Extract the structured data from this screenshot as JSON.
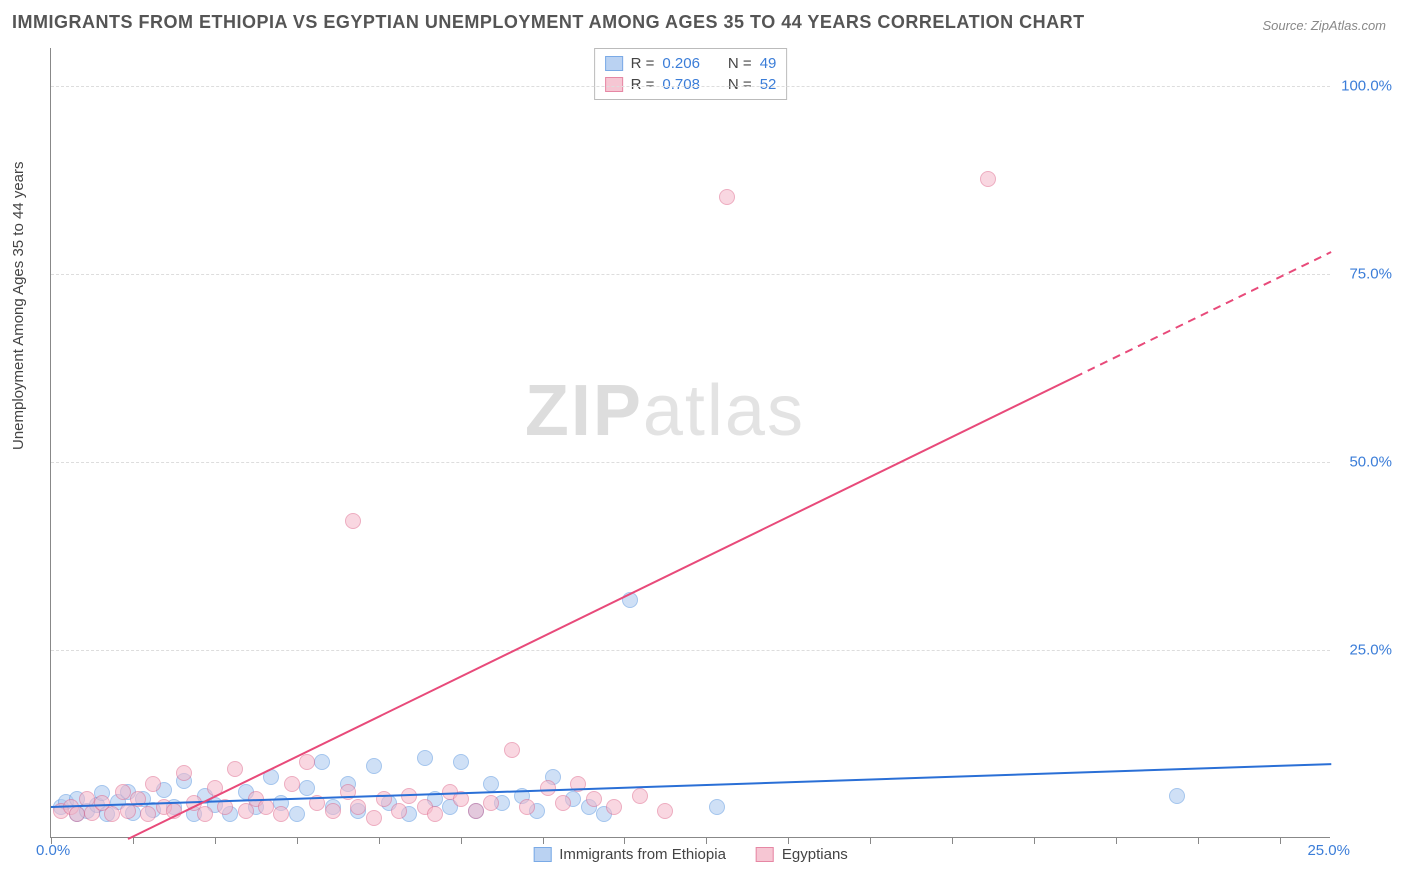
{
  "title": "IMMIGRANTS FROM ETHIOPIA VS EGYPTIAN UNEMPLOYMENT AMONG AGES 35 TO 44 YEARS CORRELATION CHART",
  "source": "Source: ZipAtlas.com",
  "y_axis_label": "Unemployment Among Ages 35 to 44 years",
  "watermark_bold": "ZIP",
  "watermark_thin": "atlas",
  "chart": {
    "type": "scatter",
    "xlim": [
      0,
      25
    ],
    "ylim": [
      0,
      105
    ],
    "x_ticks": [
      0,
      1.6,
      3.2,
      4.8,
      6.4,
      8.0,
      9.6,
      11.2,
      12.8,
      14.4,
      16.0,
      17.6,
      19.2,
      20.8,
      22.4,
      24.0
    ],
    "y_gridlines": [
      25,
      50,
      75,
      100
    ],
    "y_tick_labels": [
      "25.0%",
      "50.0%",
      "75.0%",
      "100.0%"
    ],
    "x_origin_label": "0.0%",
    "x_max_label": "25.0%",
    "background_color": "#ffffff",
    "grid_color": "#dddddd",
    "axis_color": "#888888",
    "series": [
      {
        "name": "Immigrants from Ethiopia",
        "legend_label": "Immigrants from Ethiopia",
        "fill": "#a9c8f0",
        "stroke": "#5a96e0",
        "fill_opacity": 0.55,
        "marker_radius": 8,
        "r_value": "0.206",
        "n_value": "49",
        "trend": {
          "y_at_x0": 4.3,
          "y_at_xmax": 10.0,
          "color": "#2a6fd6",
          "width": 2.4
        },
        "points": [
          [
            0.2,
            4.0
          ],
          [
            0.3,
            4.6
          ],
          [
            0.5,
            3.0
          ],
          [
            0.5,
            5.0
          ],
          [
            0.7,
            3.5
          ],
          [
            0.9,
            4.2
          ],
          [
            1.0,
            5.8
          ],
          [
            1.1,
            3.0
          ],
          [
            1.3,
            4.6
          ],
          [
            1.5,
            6.0
          ],
          [
            1.6,
            3.2
          ],
          [
            1.8,
            5.0
          ],
          [
            2.0,
            3.6
          ],
          [
            2.2,
            6.2
          ],
          [
            2.4,
            4.0
          ],
          [
            2.6,
            7.5
          ],
          [
            2.8,
            3.0
          ],
          [
            3.0,
            5.5
          ],
          [
            3.2,
            4.2
          ],
          [
            3.5,
            3.0
          ],
          [
            3.8,
            6.0
          ],
          [
            4.0,
            4.0
          ],
          [
            4.3,
            8.0
          ],
          [
            4.5,
            4.5
          ],
          [
            4.8,
            3.0
          ],
          [
            5.0,
            6.5
          ],
          [
            5.3,
            10.0
          ],
          [
            5.5,
            4.0
          ],
          [
            5.8,
            7.0
          ],
          [
            6.0,
            3.5
          ],
          [
            6.3,
            9.5
          ],
          [
            6.6,
            4.5
          ],
          [
            7.0,
            3.0
          ],
          [
            7.3,
            10.5
          ],
          [
            7.5,
            5.0
          ],
          [
            7.8,
            4.0
          ],
          [
            8.0,
            10.0
          ],
          [
            8.3,
            3.5
          ],
          [
            8.6,
            7.0
          ],
          [
            8.8,
            4.5
          ],
          [
            9.2,
            5.5
          ],
          [
            9.5,
            3.5
          ],
          [
            9.8,
            8.0
          ],
          [
            10.2,
            5.0
          ],
          [
            10.5,
            4.0
          ],
          [
            10.8,
            3.0
          ],
          [
            11.3,
            31.5
          ],
          [
            13.0,
            4.0
          ],
          [
            22.0,
            5.5
          ]
        ]
      },
      {
        "name": "Egyptians",
        "legend_label": "Egyptians",
        "fill": "#f5b8c9",
        "stroke": "#e06a8e",
        "fill_opacity": 0.55,
        "marker_radius": 8,
        "r_value": "0.708",
        "n_value": "52",
        "trend": {
          "y_at_x0": -5.0,
          "y_at_xmax": 78.0,
          "color": "#e84a7a",
          "width": 2.0,
          "dash_after_x": 20.0
        },
        "points": [
          [
            0.2,
            3.5
          ],
          [
            0.4,
            4.0
          ],
          [
            0.5,
            3.0
          ],
          [
            0.7,
            5.0
          ],
          [
            0.8,
            3.2
          ],
          [
            1.0,
            4.5
          ],
          [
            1.2,
            3.0
          ],
          [
            1.4,
            6.0
          ],
          [
            1.5,
            3.5
          ],
          [
            1.7,
            5.0
          ],
          [
            1.9,
            3.0
          ],
          [
            2.0,
            7.0
          ],
          [
            2.2,
            4.0
          ],
          [
            2.4,
            3.5
          ],
          [
            2.6,
            8.5
          ],
          [
            2.8,
            4.5
          ],
          [
            3.0,
            3.0
          ],
          [
            3.2,
            6.5
          ],
          [
            3.4,
            4.0
          ],
          [
            3.6,
            9.0
          ],
          [
            3.8,
            3.5
          ],
          [
            4.0,
            5.0
          ],
          [
            4.2,
            4.0
          ],
          [
            4.5,
            3.0
          ],
          [
            4.7,
            7.0
          ],
          [
            5.0,
            10.0
          ],
          [
            5.2,
            4.5
          ],
          [
            5.5,
            3.5
          ],
          [
            5.8,
            6.0
          ],
          [
            6.0,
            4.0
          ],
          [
            6.3,
            2.5
          ],
          [
            6.5,
            5.0
          ],
          [
            6.8,
            3.5
          ],
          [
            7.0,
            5.5
          ],
          [
            7.3,
            4.0
          ],
          [
            7.5,
            3.0
          ],
          [
            7.8,
            6.0
          ],
          [
            8.0,
            5.0
          ],
          [
            8.3,
            3.5
          ],
          [
            8.6,
            4.5
          ],
          [
            9.0,
            11.5
          ],
          [
            9.3,
            4.0
          ],
          [
            9.7,
            6.5
          ],
          [
            10.0,
            4.5
          ],
          [
            10.3,
            7.0
          ],
          [
            10.6,
            5.0
          ],
          [
            5.9,
            42.0
          ],
          [
            13.2,
            85.0
          ],
          [
            18.3,
            87.5
          ],
          [
            11.0,
            4.0
          ],
          [
            11.5,
            5.5
          ],
          [
            12.0,
            3.5
          ]
        ]
      }
    ]
  },
  "legend_stats_labels": {
    "r": "R =",
    "n": "N ="
  },
  "title_fontsize": 18,
  "label_fontsize": 15,
  "tick_fontsize": 15,
  "tick_color": "#3b7dd8"
}
